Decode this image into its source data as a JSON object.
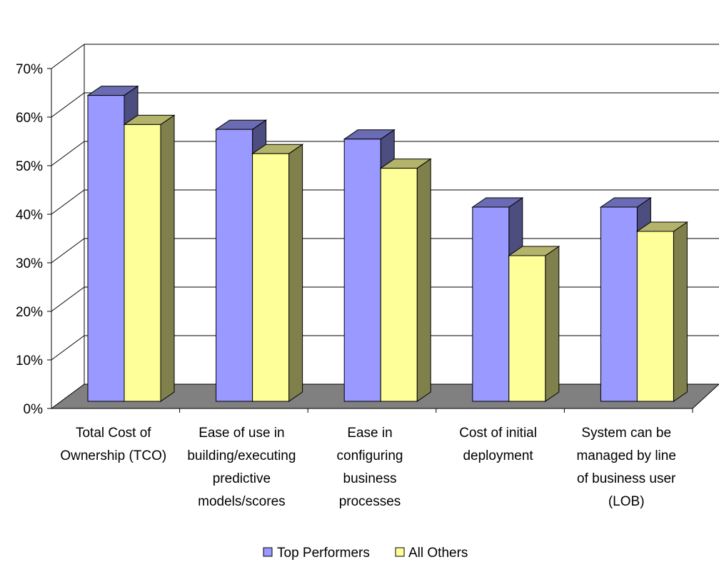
{
  "chart_data": {
    "type": "bar",
    "title": "",
    "xlabel": "",
    "ylabel": "",
    "ylim": [
      0,
      70
    ],
    "yticks": [
      "0%",
      "10%",
      "20%",
      "30%",
      "40%",
      "50%",
      "60%",
      "70%"
    ],
    "categories": [
      [
        "Total Cost of",
        "Ownership (TCO)"
      ],
      [
        "Ease of use in",
        "building/executing",
        "predictive",
        "models/scores"
      ],
      [
        "Ease in",
        "configuring",
        "business",
        "processes"
      ],
      [
        "Cost of initial",
        "deployment"
      ],
      [
        "System can be",
        "managed by line",
        "of business user",
        "(LOB)"
      ]
    ],
    "series": [
      {
        "name": "Top Performers",
        "values": [
          63,
          56,
          54,
          40,
          40
        ]
      },
      {
        "name": "All Others",
        "values": [
          57,
          51,
          48,
          30,
          35
        ]
      }
    ],
    "grid": true,
    "legend_position": "bottom",
    "style": "3d-clustered-column"
  },
  "colors": {
    "series": [
      {
        "front": "#9999ff",
        "top": "#6b6bb3",
        "side": "#4d4d80"
      },
      {
        "front": "#ffff99",
        "top": "#b3b36b",
        "side": "#80804d"
      }
    ],
    "floor": "#808080",
    "wall": "#ffffff",
    "grid": "#000000"
  }
}
